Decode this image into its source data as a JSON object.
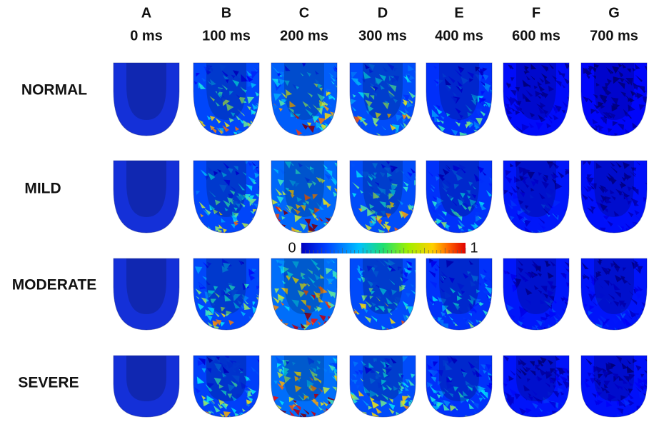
{
  "columns": [
    {
      "letter": "A",
      "time": "0 ms"
    },
    {
      "letter": "B",
      "time": "100 ms"
    },
    {
      "letter": "C",
      "time": "200 ms"
    },
    {
      "letter": "D",
      "time": "300 ms"
    },
    {
      "letter": "E",
      "time": "400 ms"
    },
    {
      "letter": "F",
      "time": "600 ms"
    },
    {
      "letter": "G",
      "time": "700 ms"
    }
  ],
  "rows": [
    "NORMAL",
    "MILD",
    "MODERATE",
    "SEVERE"
  ],
  "colorbar": {
    "min": 0,
    "max": 1
  }
}
